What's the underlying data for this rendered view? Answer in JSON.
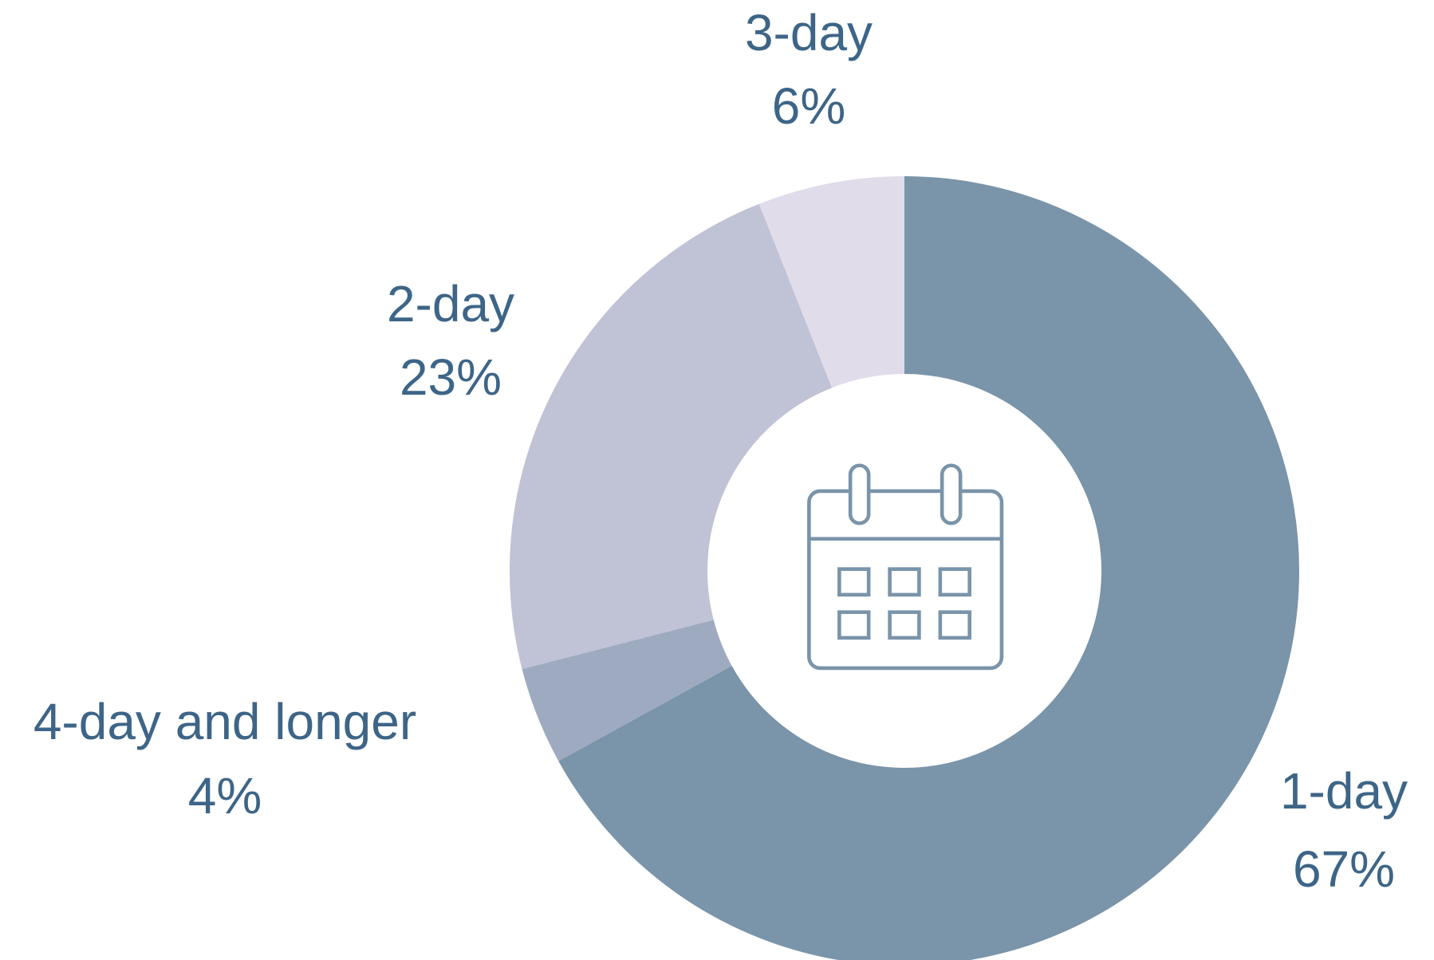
{
  "chart_data": {
    "type": "donut",
    "categories": [
      "1-day",
      "4-day and longer",
      "2-day",
      "3-day"
    ],
    "values": [
      67,
      4,
      23,
      6
    ],
    "value_labels": [
      "67%",
      "4%",
      "23%",
      "6%"
    ],
    "colors": [
      "#7a94a9",
      "#9eaac0",
      "#c0c2d6",
      "#e1dcea"
    ]
  }
}
